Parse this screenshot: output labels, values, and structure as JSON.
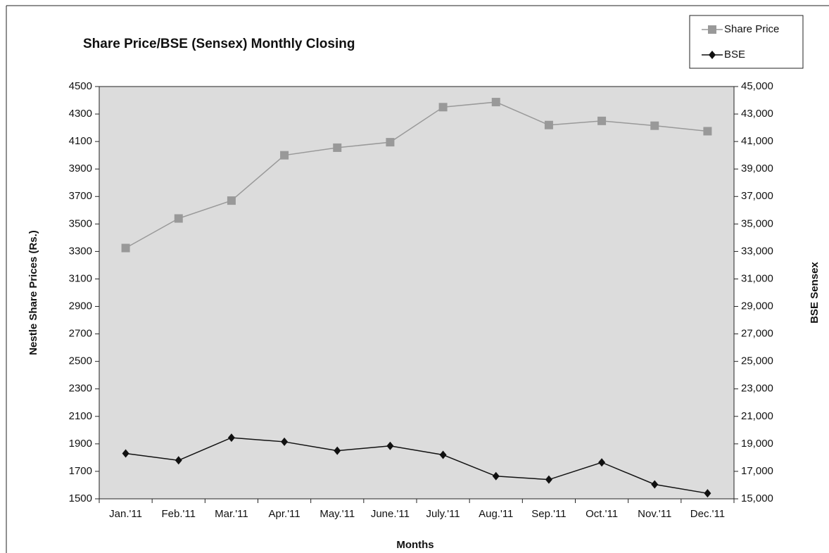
{
  "chart_data": {
    "type": "line",
    "title": "Share Price/BSE (Sensex) Monthly Closing",
    "x_label": "Months",
    "y_label": "Nestle Share Prices (Rs.)",
    "y2_label": "BSE Sensex",
    "categories": [
      "Jan.'11",
      "Feb.'11",
      "Mar.'11",
      "Apr.'11",
      "May.'11",
      "June.'11",
      "July.'11",
      "Aug.'11",
      "Sep.'11",
      "Oct.'11",
      "Nov.'11",
      "Dec.'11"
    ],
    "series": [
      {
        "name": "Share Price",
        "color": "#999999",
        "marker": "square",
        "values": [
          3325,
          3540,
          3670,
          4000,
          4055,
          4095,
          4350,
          4387,
          4220,
          4250,
          4215,
          4175
        ]
      },
      {
        "name": "BSE",
        "color": "#111111",
        "marker": "diamond",
        "axis": "y2",
        "values": [
          18300,
          17800,
          19450,
          19150,
          18500,
          18850,
          18200,
          16650,
          16400,
          17650,
          16050,
          15400
        ]
      }
    ],
    "ylim": [
      1500,
      4500
    ],
    "yticks": [
      1500,
      1700,
      1900,
      2100,
      2300,
      2500,
      2700,
      2900,
      3100,
      3300,
      3500,
      3700,
      3900,
      4100,
      4300,
      4500
    ],
    "y2lim": [
      15000,
      45000
    ],
    "y2ticks": [
      {
        "value": 15000,
        "label": "15,000"
      },
      {
        "value": 17000,
        "label": "17,000"
      },
      {
        "value": 19000,
        "label": "19,000"
      },
      {
        "value": 21000,
        "label": "21,000"
      },
      {
        "value": 23000,
        "label": "23,000"
      },
      {
        "value": 25000,
        "label": "25,000"
      },
      {
        "value": 27000,
        "label": "27,000"
      },
      {
        "value": 29000,
        "label": "29,000"
      },
      {
        "value": 31000,
        "label": "31,000"
      },
      {
        "value": 33000,
        "label": "33,000"
      },
      {
        "value": 35000,
        "label": "35,000"
      },
      {
        "value": 37000,
        "label": "37,000"
      },
      {
        "value": 39000,
        "label": "39,000"
      },
      {
        "value": 41000,
        "label": "41,000"
      },
      {
        "value": 43000,
        "label": "43,000"
      },
      {
        "value": 45000,
        "label": "45,000"
      }
    ],
    "plot_background": "#dcdcdc",
    "legend": "top-right",
    "grid": false
  }
}
